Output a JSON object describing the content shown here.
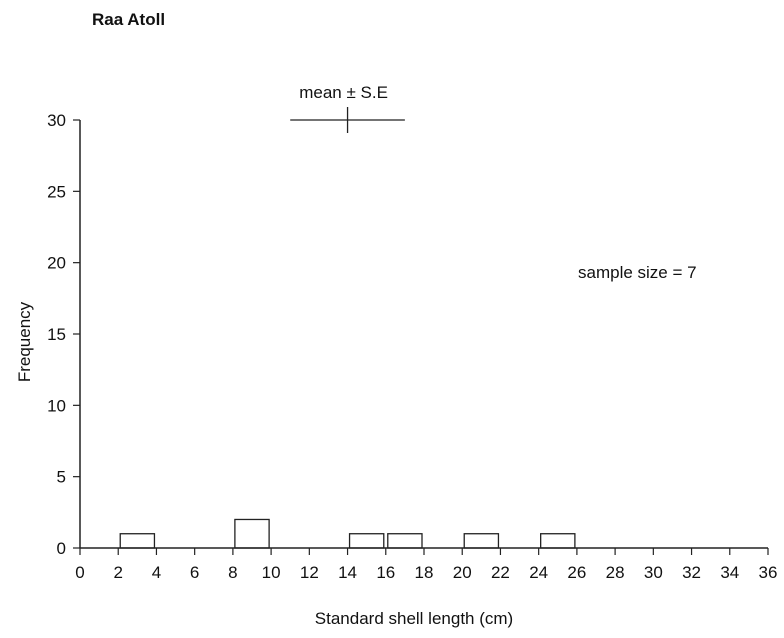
{
  "chart_data": {
    "type": "bar",
    "title": "Raa Atoll",
    "xlabel": "Standard shell length (cm)",
    "ylabel": "Frequency",
    "xlim": [
      0,
      36
    ],
    "ylim": [
      0,
      30
    ],
    "xticks": [
      "0",
      "2",
      "4",
      "6",
      "8",
      "10",
      "12",
      "14",
      "16",
      "18",
      "20",
      "22",
      "24",
      "26",
      "28",
      "30",
      "32",
      "34",
      "36"
    ],
    "yticks": [
      "0",
      "5",
      "10",
      "15",
      "20",
      "25",
      "30"
    ],
    "bins": [
      {
        "x0": 2,
        "x1": 4,
        "value": 1
      },
      {
        "x0": 8,
        "x1": 10,
        "value": 2
      },
      {
        "x0": 14,
        "x1": 16,
        "value": 1
      },
      {
        "x0": 16,
        "x1": 18,
        "value": 1
      },
      {
        "x0": 20,
        "x1": 22,
        "value": 1
      },
      {
        "x0": 24,
        "x1": 26,
        "value": 1
      }
    ],
    "mean_se": {
      "label": "mean ± S.E",
      "mean": 14,
      "low": 11,
      "high": 17,
      "y": 30
    },
    "annotation": "sample size = 7",
    "grid": false
  }
}
